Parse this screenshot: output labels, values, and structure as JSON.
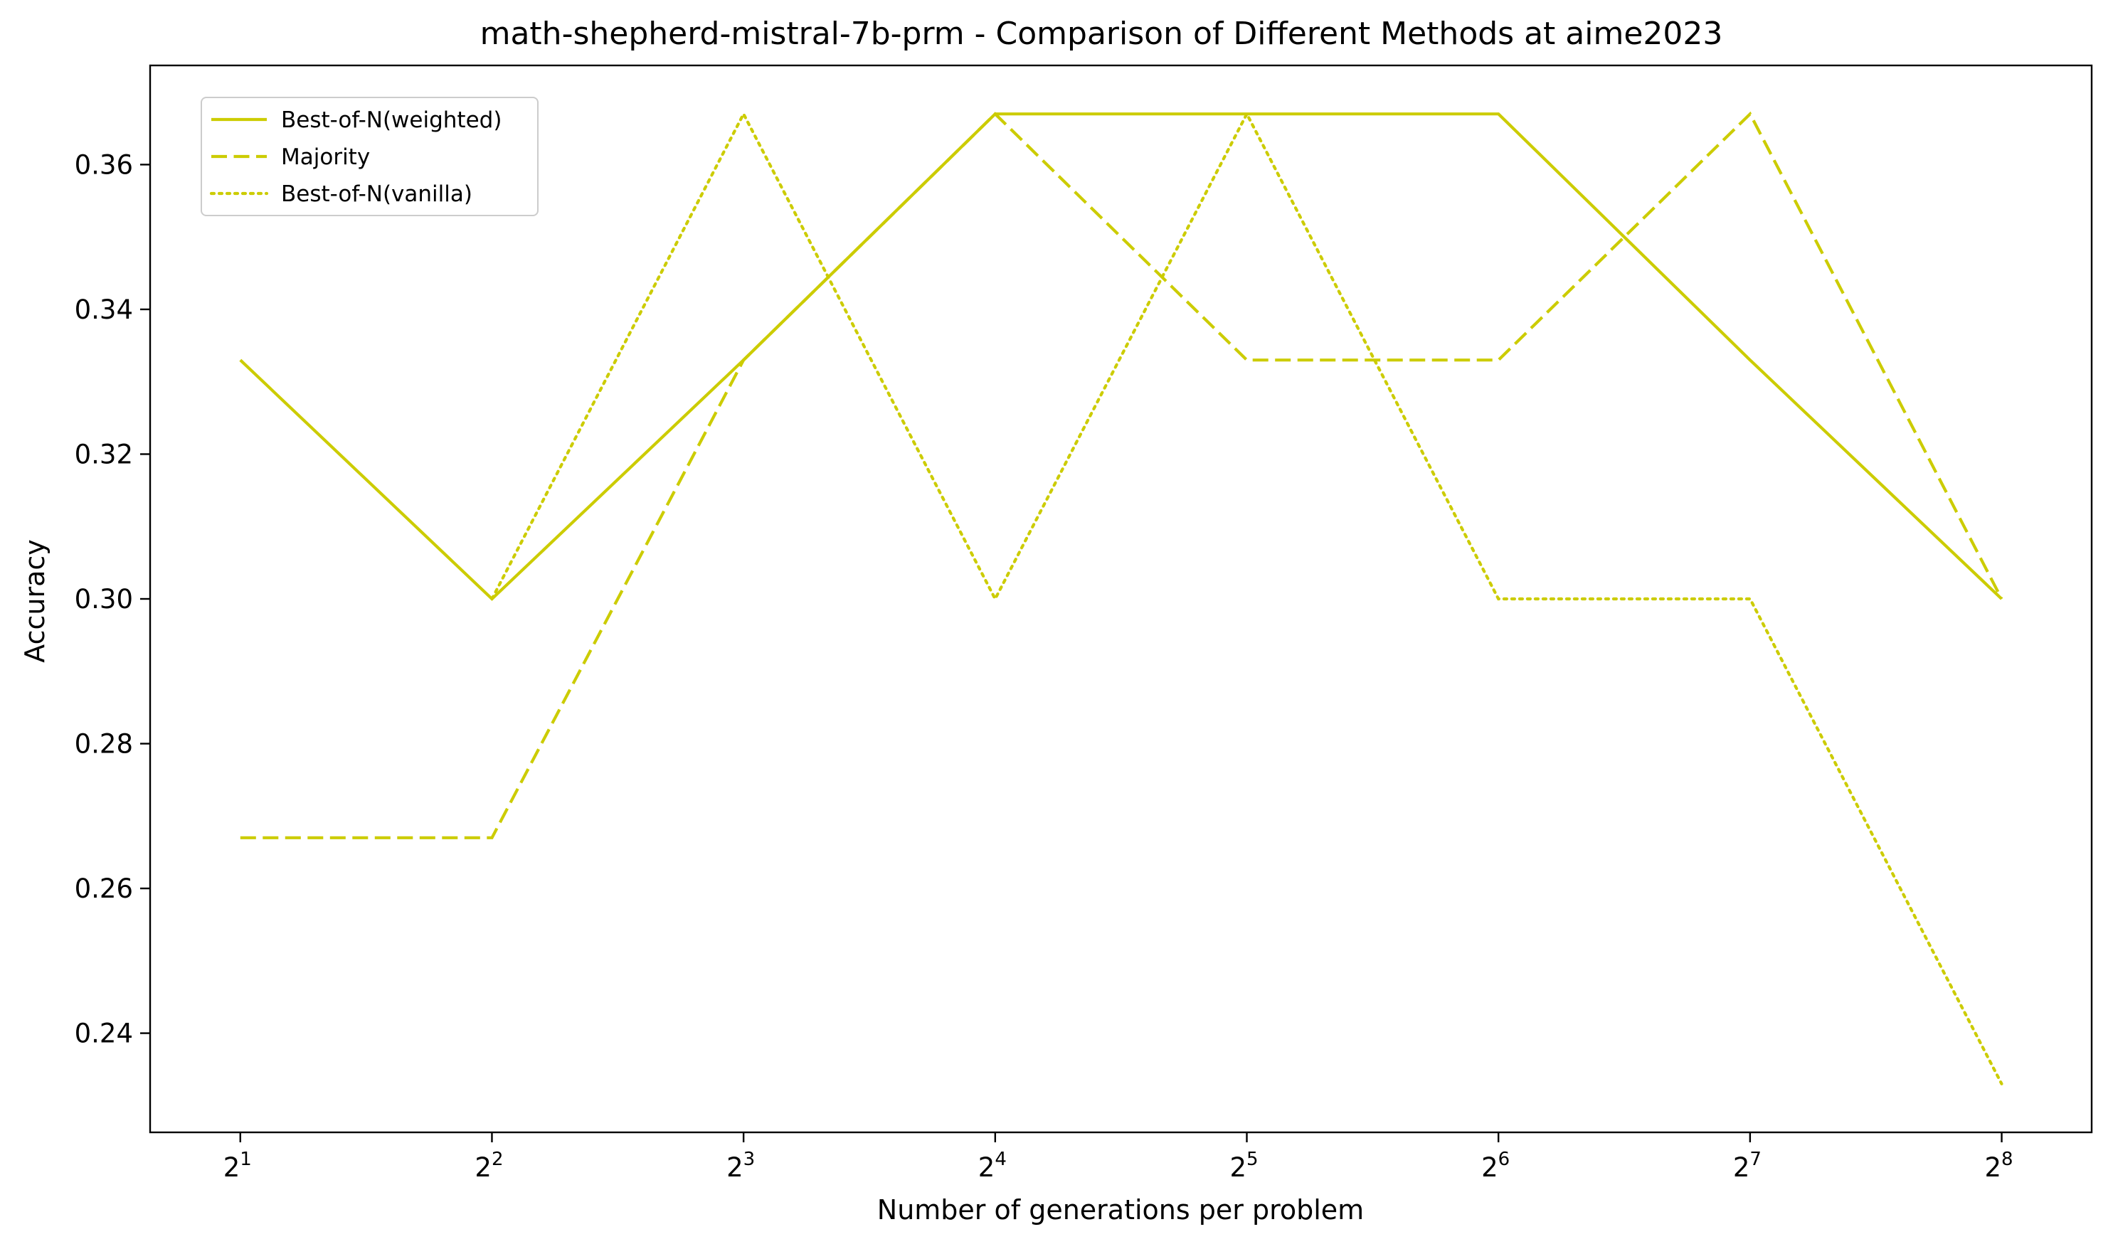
{
  "chart_data": {
    "type": "line",
    "title": "math-shepherd-mistral-7b-prm - Comparison of Different Methods at aime2023",
    "xlabel": "Number of generations per problem",
    "ylabel": "Accuracy",
    "x": [
      2,
      4,
      8,
      16,
      32,
      64,
      128,
      256
    ],
    "x_tick_labels": [
      {
        "base": "2",
        "exp": "1"
      },
      {
        "base": "2",
        "exp": "2"
      },
      {
        "base": "2",
        "exp": "3"
      },
      {
        "base": "2",
        "exp": "4"
      },
      {
        "base": "2",
        "exp": "5"
      },
      {
        "base": "2",
        "exp": "6"
      },
      {
        "base": "2",
        "exp": "7"
      },
      {
        "base": "2",
        "exp": "8"
      }
    ],
    "x_scale": "log2",
    "xlim": [
      1.56,
      328
    ],
    "ylim": [
      0.2263,
      0.3737
    ],
    "y_ticks": [
      0.24,
      0.26,
      0.28,
      0.3,
      0.32,
      0.34,
      0.36
    ],
    "y_tick_labels": [
      "0.24",
      "0.26",
      "0.28",
      "0.30",
      "0.32",
      "0.34",
      "0.36"
    ],
    "grid": false,
    "legend_position": "upper-left",
    "series": [
      {
        "name": "Best-of-N(weighted)",
        "style": "solid",
        "color": "#cccc00",
        "values": [
          0.333,
          0.3,
          0.333,
          0.367,
          0.367,
          0.367,
          0.333,
          0.3
        ]
      },
      {
        "name": "Majority",
        "style": "dashed",
        "color": "#cccc00",
        "values": [
          0.267,
          0.267,
          0.333,
          0.367,
          0.333,
          0.333,
          0.367,
          0.3
        ]
      },
      {
        "name": "Best-of-N(vanilla)",
        "style": "dotted",
        "color": "#cccc00",
        "values": [
          null,
          0.3,
          0.367,
          0.3,
          0.367,
          0.3,
          0.3,
          0.233
        ]
      }
    ]
  }
}
